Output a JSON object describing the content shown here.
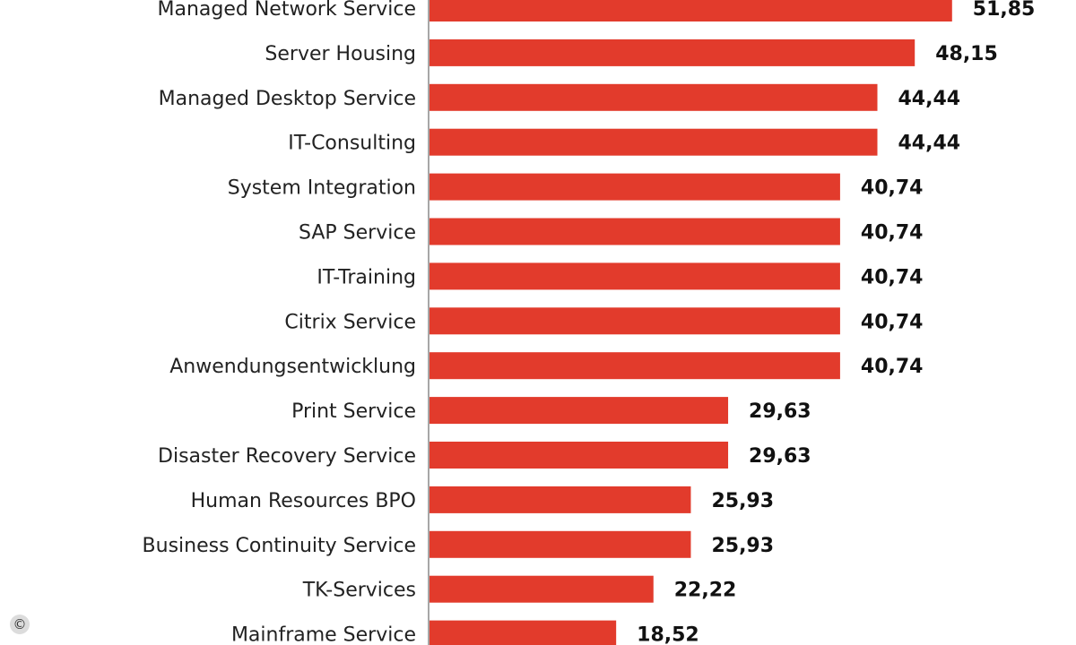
{
  "chart_data": {
    "type": "bar",
    "orientation": "horizontal",
    "categories": [
      "Managed Network Service",
      "Server Housing",
      "Managed Desktop Service",
      "IT-Consulting",
      "System Integration",
      "SAP Service",
      "IT-Training",
      "Citrix Service",
      "Anwendungsentwicklung",
      "Print Service",
      "Disaster Recovery Service",
      "Human Resources BPO",
      "Business Continuity Service",
      "TK-Services",
      "Mainframe Service"
    ],
    "values": [
      51.85,
      48.15,
      44.44,
      44.44,
      40.74,
      40.74,
      40.74,
      40.74,
      40.74,
      29.63,
      29.63,
      25.93,
      25.93,
      22.22,
      18.52
    ],
    "value_labels": [
      "51,85",
      "48,15",
      "44,44",
      "44,44",
      "40,74",
      "40,74",
      "40,74",
      "40,74",
      "40,74",
      "29,63",
      "29,63",
      "25,93",
      "25,93",
      "22,22",
      "18,52"
    ],
    "title": "",
    "xlabel": "",
    "ylabel": "",
    "xlim": [
      0,
      53
    ],
    "grid": false,
    "bar_color": "#e23b2c"
  },
  "copyright_symbol": "©"
}
